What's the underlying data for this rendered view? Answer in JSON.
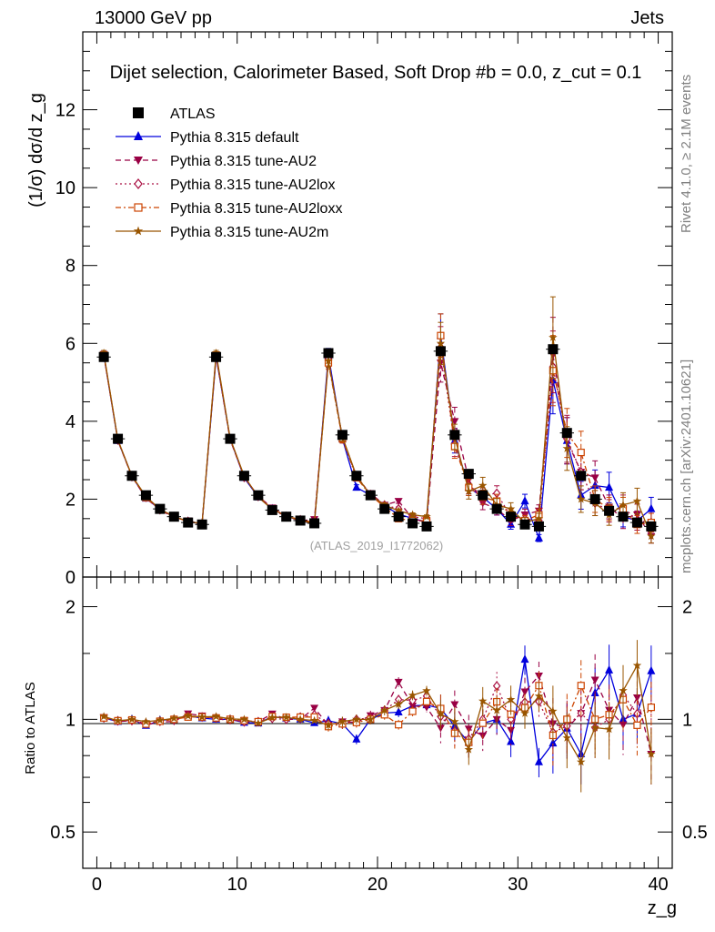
{
  "header": {
    "energy": "13000 GeV pp",
    "process": "Jets"
  },
  "side_labels": {
    "rivet": "Rivet 4.1.0, ≥ 2.1M events",
    "mcplots": "mcplots.cern.ch [arXiv:2401.10621]"
  },
  "chart_data": {
    "type": "scatter",
    "title": "Dijet selection, Calorimeter Based, Soft Drop #b = 0.0, z_cut = 0.1",
    "ylabel": "(1/σ) dσ/d z_g",
    "ratio_ylabel": "Ratio to ATLAS",
    "xlabel": "z_g",
    "watermark": "(ATLAS_2019_I1772062)",
    "xlim": [
      -1,
      41
    ],
    "ylim": [
      0,
      14
    ],
    "ratio_ylim": [
      0.4,
      2.4
    ],
    "x_ticks": [
      "0",
      "10",
      "20",
      "30",
      "40"
    ],
    "y_ticks": [
      "0",
      "2",
      "4",
      "6",
      "8",
      "10",
      "12"
    ],
    "ratio_ticks": [
      "0.5",
      "1",
      "2"
    ],
    "x": [
      0.5,
      1.5,
      2.5,
      3.5,
      4.5,
      5.5,
      6.5,
      7.5,
      8.5,
      9.5,
      10.5,
      11.5,
      12.5,
      13.5,
      14.5,
      15.5,
      16.5,
      17.5,
      18.5,
      19.5,
      20.5,
      21.5,
      22.5,
      23.5,
      24.5,
      25.5,
      26.5,
      27.5,
      28.5,
      29.5,
      30.5,
      31.5,
      32.5,
      33.5,
      34.5,
      35.5,
      36.5,
      37.5,
      38.5,
      39.5
    ],
    "series": [
      {
        "name": "ATLAS",
        "color": "#000000",
        "values": [
          5.65,
          3.55,
          2.6,
          2.1,
          1.75,
          1.55,
          1.4,
          1.35,
          5.65,
          3.55,
          2.6,
          2.1,
          1.72,
          1.55,
          1.45,
          1.38,
          5.75,
          3.65,
          2.6,
          2.1,
          1.75,
          1.55,
          1.38,
          1.3,
          5.8,
          3.65,
          2.65,
          2.1,
          1.75,
          1.55,
          1.35,
          1.3,
          5.85,
          3.7,
          2.6,
          2.0,
          1.7,
          1.55,
          1.4,
          1.3
        ]
      },
      {
        "name": "Pythia 8.315 default",
        "color": "#0000dd",
        "values": [
          5.7,
          3.5,
          2.6,
          2.02,
          1.74,
          1.55,
          1.43,
          1.36,
          5.65,
          3.55,
          2.55,
          2.05,
          1.75,
          1.56,
          1.45,
          1.35,
          5.7,
          3.55,
          2.3,
          2.1,
          1.82,
          1.62,
          1.5,
          1.42,
          6.2,
          3.5,
          2.3,
          2.05,
          1.75,
          1.35,
          1.95,
          1.0,
          5.05,
          3.5,
          2.1,
          2.35,
          2.3,
          1.55,
          1.45,
          1.75
        ]
      },
      {
        "name": "Pythia 8.315 tune-AU2",
        "color": "#990044",
        "values": [
          5.72,
          3.5,
          2.58,
          2.03,
          1.72,
          1.53,
          1.45,
          1.38,
          5.68,
          3.52,
          2.58,
          2.07,
          1.78,
          1.55,
          1.45,
          1.48,
          5.55,
          3.6,
          2.55,
          2.15,
          1.85,
          1.95,
          1.5,
          1.4,
          5.5,
          4.0,
          2.5,
          1.9,
          1.75,
          1.45,
          1.6,
          1.7,
          5.7,
          3.5,
          2.7,
          2.55,
          1.8,
          1.5,
          1.6,
          1.05
        ]
      },
      {
        "name": "Pythia 8.315 tune-AU2lox",
        "color": "#aa1144",
        "values": [
          5.7,
          3.52,
          2.58,
          2.05,
          1.73,
          1.55,
          1.43,
          1.37,
          5.7,
          3.55,
          2.56,
          2.07,
          1.73,
          1.55,
          1.47,
          1.42,
          5.6,
          3.55,
          2.6,
          2.12,
          1.85,
          1.75,
          1.55,
          1.5,
          5.9,
          3.4,
          2.35,
          2.1,
          2.15,
          1.55,
          1.5,
          1.45,
          5.4,
          3.55,
          2.7,
          1.9,
          1.7,
          1.8,
          1.45,
          1.4
        ]
      },
      {
        "name": "Pythia 8.315 tune-AU2loxx",
        "color": "#cc4400",
        "values": [
          5.7,
          3.52,
          2.59,
          2.04,
          1.73,
          1.55,
          1.42,
          1.37,
          5.7,
          3.55,
          2.58,
          2.07,
          1.75,
          1.57,
          1.47,
          1.4,
          5.5,
          3.55,
          2.55,
          2.1,
          1.8,
          1.5,
          1.45,
          1.45,
          6.2,
          3.35,
          2.3,
          2.05,
          1.95,
          1.6,
          1.45,
          1.6,
          5.3,
          3.7,
          3.2,
          2.0,
          1.75,
          1.75,
          1.35,
          1.4
        ]
      },
      {
        "name": "Pythia 8.315 tune-AU2m",
        "color": "#995500",
        "values": [
          5.75,
          3.52,
          2.6,
          2.07,
          1.74,
          1.56,
          1.43,
          1.37,
          5.75,
          3.56,
          2.6,
          2.05,
          1.74,
          1.57,
          1.45,
          1.37,
          5.55,
          3.6,
          2.6,
          2.1,
          1.85,
          1.7,
          1.6,
          1.55,
          6.0,
          3.6,
          2.2,
          2.35,
          1.85,
          1.75,
          1.4,
          1.5,
          6.15,
          3.3,
          2.0,
          1.9,
          1.6,
          1.85,
          1.95,
          1.05
        ]
      }
    ],
    "markers": [
      "square",
      "triangle-up",
      "triangle-down",
      "diamond-open",
      "square-open",
      "star"
    ],
    "dashes": [
      "none",
      "solid",
      "dash",
      "dot",
      "dashdot",
      "solid"
    ]
  }
}
